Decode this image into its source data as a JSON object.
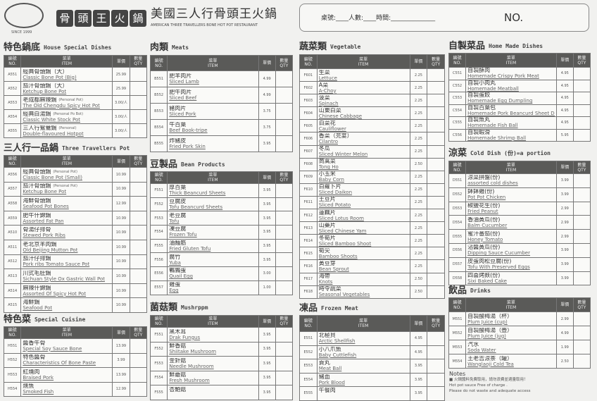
{
  "header": {
    "logo_since": "SINCE 1999",
    "brand_chars": [
      "骨",
      "頭",
      "王",
      "火",
      "鍋"
    ],
    "restaurant_cn": "美國三人行骨頭王火鍋",
    "restaurant_en": "AMERICAN THREE TRAVELLERS BONE HOT POT RESTAURANT"
  },
  "order_box": {
    "fields": "桌號:____人數:____時間:______________",
    "no_label": "NO."
  },
  "table_headers": {
    "no_cn": "編號",
    "no_en": "NO.",
    "item_cn": "菜單",
    "item_en": "ITEM",
    "price_cn": "單價",
    "qty_cn": "數量",
    "qty_en": "QTY"
  },
  "sections": [
    {
      "cn": "特色鍋底",
      "en": "House Special Dishes",
      "items": [
        [
          "A551",
          "經典骨頭鍋（大）",
          "Classic Bone Pot (Big)",
          "25.99",
          ""
        ],
        [
          "A552",
          "茄汁骨頭鍋（大）",
          "Ketchup Bone Pot",
          "25.99",
          ""
        ],
        [
          "A553",
          "老成都麻辣鍋",
          "The Old Chengdu Spicy Hot Pot",
          "3.00/人",
          "(Personal Pot)"
        ],
        [
          "A554",
          "經典白湯鍋",
          "Classic White Stock Pot",
          "3.00/人",
          "(Personal Po Bot)"
        ],
        [
          "A555",
          "三人行鴛鴦鍋",
          "Double-flavoured Hotpot",
          "3.00/人",
          "(Personal)"
        ]
      ]
    },
    {
      "cn": "三人行一品鍋",
      "en": "Three Travellers Pot",
      "items": [
        [
          "A556",
          "經典骨頭鍋",
          "Classic Bone Pot (Small)",
          "10.99",
          "(Personal Pot)"
        ],
        [
          "A557",
          "茄汁骨頭鍋",
          "Ketchup Bone Pot",
          "10.99",
          "(Personal Pot)"
        ],
        [
          "A558",
          "海鮮骨頭鍋",
          "Seafood Pot Bones",
          "12.99",
          ""
        ],
        [
          "A559",
          "肥牛什錦鍋",
          "Assorted Fat Pan",
          "10.99",
          ""
        ],
        [
          "A510",
          "骨湯仔排骨",
          "Stewed Pork Ribs",
          "10.99",
          ""
        ],
        [
          "A511",
          "老北京羊肉鍋",
          "Old Beijing Mutton Pot",
          "10.99",
          ""
        ],
        [
          "A512",
          "茄汁仔排鍋",
          "Pork ribs Tomato Sauce Pot",
          "10.99",
          ""
        ],
        [
          "A513",
          "川式毛肚鍋",
          "Sichuan Style Ox Gastric Wall Pot",
          "10.99",
          ""
        ],
        [
          "A514",
          "麻辣什錦鍋",
          "Assorted Of Spicy Hot Pot",
          "10.99",
          ""
        ],
        [
          "A515",
          "海鮮鍋",
          "Seafood Pot",
          "10.99",
          ""
        ]
      ]
    },
    {
      "cn": "特色菜",
      "en": "Special Cuisine",
      "items": [
        [
          "H551",
          "醬香牛骨",
          "Special Soy Sauce Bone",
          "13.99",
          ""
        ],
        [
          "H552",
          "特色醬骨",
          "Characteristics Of Bone Paste",
          "3.99",
          ""
        ],
        [
          "H553",
          "紅燒肉",
          "Braised Pork",
          "13.99",
          ""
        ],
        [
          "H554",
          "燻魚",
          "Smoked Fish",
          "12.99",
          ""
        ]
      ]
    },
    {
      "cn": "肉類",
      "en": "Meats",
      "items": [
        [
          "B551",
          "肥羊肉片",
          "Sliced Lamb",
          "4.99",
          ""
        ],
        [
          "B552",
          "肥牛肉片",
          "Sliced Beef",
          "4.99",
          ""
        ],
        [
          "B553",
          "豬肉片",
          "Sliced Pork",
          "3.75",
          ""
        ],
        [
          "B554",
          "牛百葉",
          "Beef Book-tripe",
          "3.75",
          ""
        ],
        [
          "B555",
          "炸豬皮",
          "Fried Pork Skin",
          "3.95",
          ""
        ]
      ]
    },
    {
      "cn": "豆製品",
      "en": "Bean Products",
      "items": [
        [
          "F551",
          "厚百葉",
          "Thick Beancurd Sheets",
          "3.95",
          ""
        ],
        [
          "F552",
          "豆腐皮",
          "Tofu Beancurd Sheets",
          "3.95",
          ""
        ],
        [
          "F553",
          "老豆腐",
          "Tofu",
          "3.95",
          ""
        ],
        [
          "F554",
          "凍豆腐",
          "Frozen Tofu",
          "3.95",
          ""
        ],
        [
          "F555",
          "油麵筋",
          "Fried Gluten Tofu",
          "3.95",
          ""
        ],
        [
          "F556",
          "腐竹",
          "Yuba",
          "3.95",
          ""
        ],
        [
          "E556",
          "鵪鶉蛋",
          "Quail Egg",
          "3.00",
          ""
        ],
        [
          "E557",
          "雞蛋",
          "Egg",
          "1.00",
          ""
        ]
      ]
    },
    {
      "cn": "菌菇類",
      "en": "Mushrppm",
      "items": [
        [
          "F551",
          "黑木耳",
          "Drak Fungus",
          "3.95",
          ""
        ],
        [
          "F552",
          "鮮香菇",
          "Shiitake Mushroom",
          "3.95",
          ""
        ],
        [
          "F553",
          "金針菇",
          "Needle Mushroom",
          "3.95",
          ""
        ],
        [
          "F554",
          "鮮蘑菇",
          "Fresh Mushroom",
          "3.95",
          ""
        ],
        [
          "F555",
          "杏鮑菇",
          "",
          "3.95",
          ""
        ]
      ]
    },
    {
      "cn": "蔬菜類",
      "en": "Vegetable",
      "items": [
        [
          "F601",
          "生菜",
          "Lettuce",
          "2.25",
          ""
        ],
        [
          "F602",
          "A菜",
          "A-Choy",
          "2.25",
          ""
        ],
        [
          "F603",
          "菠菜",
          "Spinach",
          "2.25",
          ""
        ],
        [
          "F604",
          "山東白菜",
          "Chinese Cabbage",
          "2.25",
          ""
        ],
        [
          "F605",
          "白菜花",
          "Cauliflower",
          "2.25",
          ""
        ],
        [
          "F606",
          "香菜（芫荽）",
          "Cilantro",
          "2.25",
          ""
        ],
        [
          "F607",
          "冬瓜",
          "Sliced Winter Melon",
          "2.25",
          ""
        ],
        [
          "F608",
          "茼蒿菜",
          "Tong Ho",
          "2.50",
          ""
        ],
        [
          "F609",
          "小玉米",
          "Baby Corn",
          "2.25",
          ""
        ],
        [
          "F610",
          "白蘿卜片",
          "Sliced Daikon",
          "2.25",
          ""
        ],
        [
          "F611",
          "土豆片",
          "Sliced Potato",
          "2.25",
          ""
        ],
        [
          "F612",
          "蓮藕片",
          "Sliced Lotus Room",
          "2.25",
          ""
        ],
        [
          "F613",
          "山藥片",
          "Sliced Chinese Yam",
          "2.25",
          ""
        ],
        [
          "F614",
          "冬筍片",
          "Sliced Bamboo Shoot",
          "2.25",
          ""
        ],
        [
          "F615",
          "筍尖",
          "Bamboo Shoots",
          "2.25",
          ""
        ],
        [
          "F616",
          "黃豆芽",
          "Bean Sprout",
          "2.25",
          ""
        ],
        [
          "F617",
          "海帶",
          "Knots",
          "2.50",
          ""
        ],
        [
          "F618",
          "時令蔬菜",
          "Seasonal Vegetables",
          "2.50",
          ""
        ]
      ]
    },
    {
      "cn": "凍品",
      "en": "Frozen Meat",
      "items": [
        [
          "E551",
          "北極貝",
          "Arctic Shellfish",
          "4.95",
          ""
        ],
        [
          "E552",
          "小八爪魚",
          "Baby Cuttlefish",
          "4.95",
          ""
        ],
        [
          "E553",
          "貢丸",
          "Meat Ball",
          "3.95",
          ""
        ],
        [
          "E554",
          "豬血",
          "Pork Blood",
          "3.95",
          ""
        ],
        [
          "E555",
          "午餐肉",
          "",
          "3.95",
          ""
        ]
      ]
    },
    {
      "cn": "自製菜品",
      "en": "Home Made Dishes",
      "items": [
        [
          "C551",
          "自製酥肉",
          "Homemade Crispy Pork Meat",
          "4.95",
          ""
        ],
        [
          "C552",
          "自製小肉丸",
          "Homemade Meatball",
          "4.95",
          ""
        ],
        [
          "C553",
          "自製蛋餃",
          "Homemade Egg Dumpling",
          "4.95",
          ""
        ],
        [
          "C554",
          "自製百葉包",
          "Homemade Pork Beancurd Sheet Dumply",
          "4.95",
          ""
        ],
        [
          "C555",
          "自製魚丸",
          "Homemade Fish Ball",
          "4.95",
          ""
        ],
        [
          "C556",
          "自製蝦滑",
          "Homemade Shrimp Ball",
          "5.95",
          ""
        ]
      ]
    },
    {
      "cn": "涼菜",
      "en": "Cold Dish (份)=a portion",
      "items": [
        [
          "D551",
          "涼菜拼盤(份)",
          "assorted cold dishes",
          "3.99",
          ""
        ],
        [
          "D552",
          "鉢鉢雞(份)",
          "Pot Pot Chicken",
          "3.99",
          ""
        ],
        [
          "D553",
          "椒鹽花生(份)",
          "Fried Peanut",
          "2.99",
          ""
        ],
        [
          "D554",
          "香油黃瓜(份)",
          "Balm Cucumber",
          "2.99",
          ""
        ],
        [
          "D555",
          "蜜汁番茄(份)",
          "Honey Tomato",
          "2.99",
          ""
        ],
        [
          "D556",
          "沾醬黃瓜(份)",
          "Dipping Sauce Cucumber",
          "3.99",
          ""
        ],
        [
          "D557",
          "皮蛋肉松豆腐(份)",
          "Tofu With Preserved Eggs",
          "3.99",
          ""
        ],
        [
          "D558",
          "四喜烤麩(份)",
          "Sixi Baked Cake",
          "3.99",
          ""
        ]
      ]
    },
    {
      "cn": "飲品",
      "en": "Drinks",
      "items": [
        [
          "M551",
          "自製酸梅湯（杯）",
          "Plum Juice (cup)",
          "2.99",
          ""
        ],
        [
          "M552",
          "自製酸梅湯（壺）",
          "Plum Juice (jug)",
          "4.99",
          ""
        ],
        [
          "M553",
          "汽水",
          "Soda Water",
          "1.99",
          ""
        ],
        [
          "M554",
          "王老吉涼茶（罐）",
          "Wanglaoji Cold Tea",
          "2.50",
          ""
        ]
      ]
    }
  ],
  "notes": {
    "title": "Notes",
    "lines": [
      "■ 火鍋醬料免費取用，請勿浪費並適量取用！",
      "Hot pot sauce Free of charge .",
      "Please do not waste and adequate access"
    ]
  }
}
